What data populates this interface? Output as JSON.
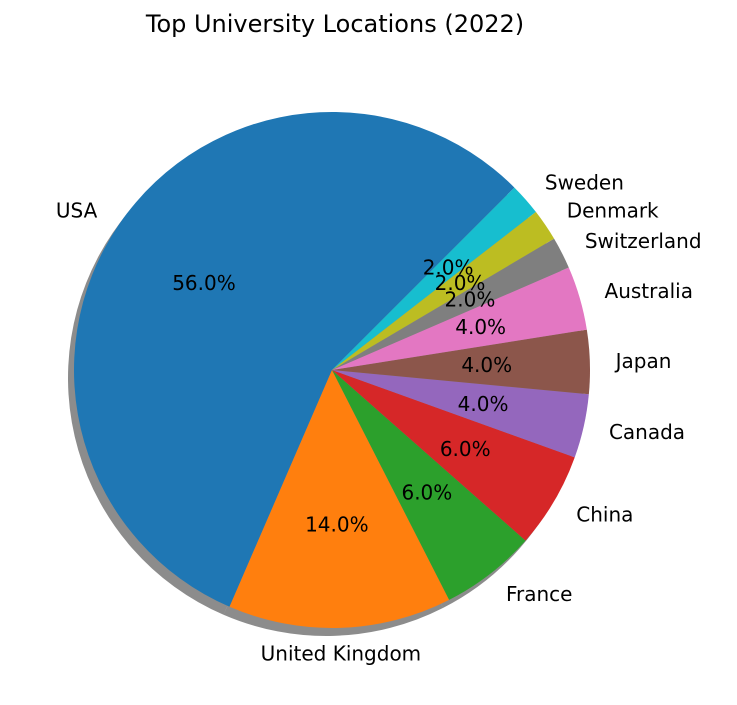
{
  "chart_data": {
    "type": "pie",
    "title": "Top University Locations (2022)",
    "labels": [
      "USA",
      "United Kingdom",
      "France",
      "China",
      "Canada",
      "Japan",
      "Australia",
      "Switzerland",
      "Denmark",
      "Sweden"
    ],
    "values": [
      56.0,
      14.0,
      6.0,
      6.0,
      4.0,
      4.0,
      4.0,
      2.0,
      2.0,
      2.0
    ],
    "pct_labels": [
      "56.0%",
      "14.0%",
      "6.0%",
      "6.0%",
      "4.0%",
      "4.0%",
      "4.0%",
      "2.0%",
      "2.0%",
      "2.0%"
    ],
    "colors": [
      "#1f77b4",
      "#ff7f0e",
      "#2ca02c",
      "#d62728",
      "#9467bd",
      "#8c564b",
      "#e377c2",
      "#7f7f7f",
      "#bcbd22",
      "#17becf"
    ],
    "shadow": true,
    "legend": false
  }
}
